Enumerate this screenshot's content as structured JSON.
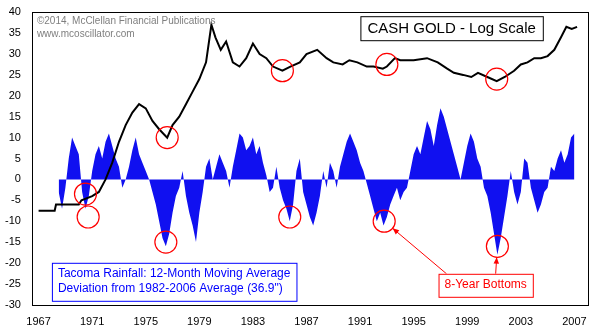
{
  "chart_data": {
    "type": "line",
    "title": "CASH GOLD - Log Scale",
    "annotations": [
      {
        "text": [
          "©2014, McClellan Financial Publications",
          "www.mcoscillator.com"
        ],
        "color": "#7f7f7f"
      },
      {
        "text": [
          "Tacoma Rainfall: 12-Month Moving Average",
          "Deviation from 1982-2006 Average (36.9\")"
        ],
        "color": "#0000ff"
      },
      {
        "text": [
          "8-Year Bottoms"
        ],
        "color": "#ff0000"
      }
    ],
    "xlim": [
      1966.5,
      2008
    ],
    "xticks": [
      1967,
      1971,
      1975,
      1979,
      1983,
      1987,
      1991,
      1995,
      1999,
      2003,
      2007
    ],
    "ylim": [
      -30,
      40
    ],
    "yticks": [
      -30,
      -25,
      -20,
      -15,
      -10,
      -5,
      0,
      5,
      10,
      15,
      20,
      25,
      30,
      35,
      40
    ],
    "grid": false,
    "series": [
      {
        "type": "scatter",
        "marker": "circle",
        "color": "#ff0000",
        "x": [
          1970.5,
          1970.7,
          1976.6,
          1976.5,
          1985.2,
          1985.75,
          1993,
          2001.2,
          1992.8,
          2001.25
        ],
        "values": [
          -3.5,
          -9,
          10,
          -15,
          26,
          -9,
          27.5,
          24,
          -10,
          -16
        ]
      },
      {
        "type": "line",
        "color": "#000000",
        "x": [
          1967.0,
          1968.2,
          1968.3,
          1970.0,
          1970.2,
          1971.0,
          1971.5,
          1972.0,
          1972.5,
          1973.0,
          1973.5,
          1974.0,
          1974.5,
          1975.0,
          1975.5,
          1976.0,
          1976.6,
          1977.0,
          1977.5,
          1978.0,
          1978.5,
          1979.0,
          1979.5,
          1979.9,
          1980.2,
          1980.6,
          1981.0,
          1981.5,
          1982.0,
          1982.5,
          1983.0,
          1983.5,
          1984.0,
          1984.5,
          1985.2,
          1985.8,
          1986.5,
          1987.0,
          1987.8,
          1988.5,
          1989.0,
          1989.7,
          1990.2,
          1990.8,
          1991.5,
          1992.0,
          1992.7,
          1993.0,
          1993.6,
          1994.0,
          1995.0,
          1996.0,
          1996.8,
          1997.5,
          1998.0,
          1998.7,
          1999.3,
          1999.8,
          2000.5,
          2001.2,
          2001.8,
          2002.5,
          2003.0,
          2003.5,
          2004.0,
          2004.5,
          2005.0,
          2005.5,
          2006.0,
          2006.4,
          2006.8,
          2007.2
        ],
        "values": [
          -7.5,
          -7.5,
          -6,
          -6,
          -5,
          -4,
          -3,
          0,
          4,
          9,
          13,
          16,
          18,
          17,
          14,
          12,
          10,
          13,
          15,
          18,
          21,
          24,
          28,
          37,
          34,
          31,
          33,
          28,
          27,
          29,
          32.5,
          30,
          29,
          27,
          26,
          27,
          28,
          30,
          31,
          29,
          28,
          27.5,
          28.5,
          28,
          27,
          27,
          26.5,
          27,
          29,
          28.5,
          28.5,
          29,
          28,
          26.5,
          25.5,
          25,
          24.5,
          25.5,
          24.5,
          23.5,
          24.5,
          26,
          27.5,
          28,
          29,
          29,
          29.5,
          31,
          34,
          36.5,
          36,
          36.5
        ]
      },
      {
        "type": "area",
        "color": "#1010f0",
        "x": [
          1968.5,
          1968.75,
          1969.0,
          1969.25,
          1969.5,
          1969.75,
          1970.0,
          1970.25,
          1970.5,
          1970.75,
          1971.0,
          1971.25,
          1971.5,
          1971.75,
          1972.0,
          1972.25,
          1972.5,
          1972.75,
          1973.0,
          1973.25,
          1973.5,
          1973.75,
          1974.0,
          1974.25,
          1974.5,
          1974.75,
          1975.0,
          1975.25,
          1975.5,
          1975.75,
          1976.0,
          1976.25,
          1976.5,
          1976.75,
          1977.0,
          1977.25,
          1977.5,
          1977.75,
          1978.0,
          1978.25,
          1978.5,
          1978.75,
          1979.0,
          1979.25,
          1979.5,
          1979.75,
          1980.0,
          1980.25,
          1980.5,
          1980.75,
          1981.0,
          1981.25,
          1981.5,
          1981.75,
          1982.0,
          1982.25,
          1982.5,
          1982.75,
          1983.0,
          1983.25,
          1983.5,
          1983.75,
          1984.0,
          1984.25,
          1984.5,
          1984.75,
          1985.0,
          1985.25,
          1985.5,
          1985.75,
          1986.0,
          1986.25,
          1986.5,
          1986.75,
          1987.0,
          1987.25,
          1987.5,
          1987.75,
          1988.0,
          1988.25,
          1988.5,
          1988.75,
          1989.0,
          1989.25,
          1989.5,
          1989.75,
          1990.0,
          1990.25,
          1990.5,
          1990.75,
          1991.0,
          1991.25,
          1991.5,
          1991.75,
          1992.0,
          1992.25,
          1992.5,
          1992.75,
          1993.0,
          1993.25,
          1993.5,
          1993.75,
          1994.0,
          1994.25,
          1994.5,
          1994.75,
          1995.0,
          1995.25,
          1995.5,
          1995.75,
          1996.0,
          1996.25,
          1996.5,
          1996.75,
          1997.0,
          1997.25,
          1997.5,
          1997.75,
          1998.0,
          1998.25,
          1998.5,
          1998.75,
          1999.0,
          1999.25,
          1999.5,
          1999.75,
          2000.0,
          2000.25,
          2000.5,
          2000.75,
          2001.0,
          2001.25,
          2001.5,
          2001.75,
          2002.0,
          2002.25,
          2002.5,
          2002.75,
          2003.0,
          2003.25,
          2003.5,
          2003.75,
          2004.0,
          2004.25,
          2004.5,
          2004.75,
          2005.0,
          2005.25,
          2005.5,
          2005.75,
          2006.0,
          2006.25,
          2006.5,
          2006.75,
          2007.0
        ],
        "values": [
          -3,
          -7,
          -2,
          5,
          10,
          8,
          6,
          -3,
          -7,
          -4,
          2,
          6,
          8,
          5,
          9,
          11,
          8,
          5,
          3,
          -2,
          0,
          3,
          7,
          10,
          6,
          4,
          2,
          0,
          -3,
          -6,
          -10,
          -14,
          -16,
          -13,
          -8,
          -4,
          -2,
          2,
          -4,
          -8,
          -11,
          -15,
          -8,
          -3,
          3,
          5,
          0,
          3,
          6,
          4,
          2,
          -2,
          3,
          7,
          11,
          10,
          7,
          8,
          10,
          6,
          8,
          4,
          1,
          -3,
          -2,
          3,
          -2,
          -5,
          -7,
          -10,
          -6,
          2,
          5,
          -3,
          -6,
          -9,
          -11,
          -8,
          -4,
          2,
          -2,
          4,
          2,
          -2,
          3,
          6,
          9,
          11,
          9,
          7,
          4,
          2,
          -1,
          -4,
          -7,
          -10,
          -8,
          -11,
          -9,
          -6,
          -4,
          -2,
          -5,
          -3,
          -2,
          2,
          6,
          8,
          6,
          10,
          14,
          12,
          8,
          13,
          17,
          15,
          12,
          9,
          6,
          3,
          0,
          4,
          8,
          11,
          9,
          5,
          3,
          -2,
          -4,
          -8,
          -13,
          -18,
          -14,
          -9,
          -4,
          2,
          -3,
          -6,
          -3,
          5,
          4,
          -2,
          -5,
          -8,
          -6,
          -3,
          -2,
          3,
          2,
          5,
          7,
          4,
          6,
          10,
          11
        ]
      }
    ]
  }
}
